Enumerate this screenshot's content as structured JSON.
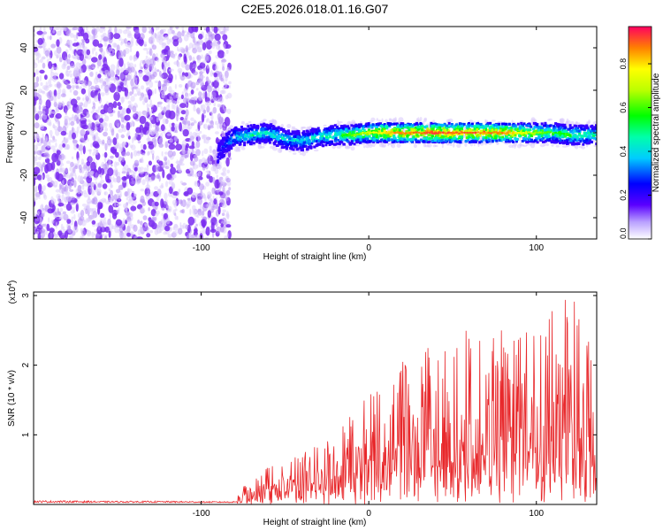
{
  "figure_title": "C2E5.2026.018.01.16.G07",
  "chart_data": [
    {
      "type": "heatmap",
      "title": "C2E5.2026.018.01.16.G07",
      "xlabel": "Height of straight line (km)",
      "ylabel": "Frequency (Hz)",
      "xlim": [
        -200,
        136
      ],
      "ylim": [
        -50,
        50
      ],
      "x_ticks": [
        -100,
        0,
        100
      ],
      "x_tick_labels": [
        "-100",
        "0",
        "100"
      ],
      "y_ticks": [
        -40,
        -20,
        0,
        20,
        40
      ],
      "y_tick_labels": [
        "-40",
        "-20",
        "0",
        "20",
        "40"
      ],
      "colorbar": {
        "label": "Normalized spectral amplitude",
        "range": [
          0.0,
          0.97
        ],
        "ticks": [
          0.0,
          0.2,
          0.4,
          0.6,
          0.8
        ],
        "tick_labels": [
          "0.0",
          "0.2",
          "0.4",
          "0.6",
          "0.8"
        ]
      },
      "noise_region": {
        "x_range": [
          -200,
          -86
        ],
        "amplitude_range": [
          0.05,
          0.3
        ]
      },
      "signal_ridge": {
        "x": [
          -90,
          -85,
          -80,
          -70,
          -60,
          -50,
          -40,
          -30,
          -20,
          -10,
          0,
          10,
          20,
          30,
          40,
          50,
          60,
          70,
          80,
          90,
          100,
          110,
          120,
          130,
          136
        ],
        "frequency": [
          -10,
          -5,
          -2,
          -1,
          0,
          -3,
          -4,
          -2,
          -1,
          -1,
          0,
          0,
          0,
          0,
          0,
          0,
          0,
          0,
          0,
          0,
          0,
          0,
          -1,
          -1,
          -1
        ],
        "amplitude": [
          0.25,
          0.35,
          0.45,
          0.5,
          0.5,
          0.45,
          0.45,
          0.5,
          0.55,
          0.65,
          0.75,
          0.85,
          0.9,
          0.92,
          0.93,
          0.93,
          0.95,
          0.9,
          0.9,
          0.8,
          0.7,
          0.6,
          0.6,
          0.55,
          0.5
        ]
      }
    },
    {
      "type": "line",
      "xlabel": "Height of straight line (km)",
      "ylabel": "SNR (10 * v/v)",
      "scale_label": "(x10",
      "scale_exponent": "4",
      "scale_suffix": ")",
      "xlim": [
        -200,
        136
      ],
      "ylim": [
        0,
        3.05
      ],
      "x_ticks": [
        -100,
        0,
        100
      ],
      "x_tick_labels": [
        "-100",
        "0",
        "100"
      ],
      "y_ticks": [
        1,
        2,
        3
      ],
      "y_tick_labels": [
        "1",
        "2",
        "3"
      ],
      "series": [
        {
          "name": "SNR",
          "color": "#e8282b",
          "x": [
            -200,
            -180,
            -160,
            -140,
            -120,
            -100,
            -90,
            -80,
            -76,
            -70,
            -60,
            -50,
            -40,
            -30,
            -20,
            -10,
            0,
            10,
            20,
            30,
            40,
            50,
            60,
            70,
            80,
            90,
            100,
            110,
            120,
            130,
            136
          ],
          "y_envelope": [
            0.05,
            0.05,
            0.04,
            0.04,
            0.04,
            0.03,
            0.03,
            0.03,
            0.25,
            0.3,
            0.55,
            0.6,
            0.75,
            0.85,
            1.0,
            1.3,
            1.6,
            1.9,
            2.1,
            2.2,
            2.35,
            2.45,
            2.55,
            2.6,
            2.5,
            2.5,
            2.6,
            2.8,
            3.0,
            2.9,
            2.4
          ]
        }
      ]
    }
  ]
}
